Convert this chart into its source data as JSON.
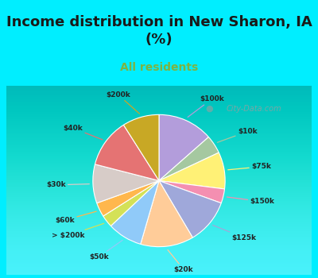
{
  "title": "Income distribution in New Sharon, IA\n(%)",
  "subtitle": "All residents",
  "title_color": "#1a1a1a",
  "subtitle_color": "#7cb342",
  "background_outer": "#00eeff",
  "background_inner_top": "#e8f5e9",
  "background_inner_bottom": "#c8e6c9",
  "labels": [
    "$100k",
    "$10k",
    "$75k",
    "$150k",
    "$125k",
    "$20k",
    "$50k",
    "> $200k",
    "$60k",
    "$30k",
    "$40k",
    "$200k"
  ],
  "values": [
    13.5,
    4.5,
    9.0,
    3.5,
    11.0,
    13.0,
    8.5,
    3.0,
    3.5,
    9.5,
    12.0,
    9.0
  ],
  "colors": [
    "#b39ddb",
    "#a5c8a0",
    "#fff176",
    "#f48fb1",
    "#9fa8da",
    "#ffcc99",
    "#90caf9",
    "#d4e157",
    "#ffb74d",
    "#d7ccc8",
    "#e57373",
    "#c8a825"
  ],
  "watermark": "City-Data.com",
  "chart_title_fontsize": 13,
  "subtitle_fontsize": 10,
  "label_fontsize": 6.5
}
